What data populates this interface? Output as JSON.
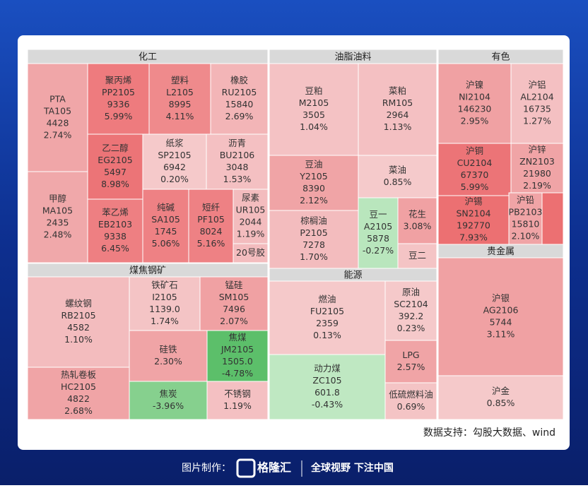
{
  "groups": [
    {
      "title": "化工",
      "tiles": [
        {
          "lines": [
            "PTA",
            "TA105",
            "4428",
            "2.74%"
          ],
          "color": "#f0a6a8"
        },
        {
          "lines": [
            "甲醇",
            "MA105",
            "2435",
            "2.48%"
          ],
          "color": "#f0a8aa"
        },
        {
          "lines": [
            "聚丙烯",
            "PP2105",
            "9336",
            "5.99%"
          ],
          "color": "#ee7b7e"
        },
        {
          "lines": [
            "塑料",
            "L2105",
            "8995",
            "4.11%"
          ],
          "color": "#ef8a8c"
        },
        {
          "lines": [
            "橡胶",
            "RU2105",
            "15840",
            "2.69%"
          ],
          "color": "#f3b5b7"
        },
        {
          "lines": [
            "乙二醇",
            "EG2105",
            "5497",
            "8.98%"
          ],
          "color": "#ec7477"
        },
        {
          "lines": [
            "苯乙烯",
            "EB2103",
            "9338",
            "6.45%"
          ],
          "color": "#ee7f82"
        },
        {
          "lines": [
            "纸浆",
            "SP2105",
            "6942",
            "0.20%"
          ],
          "color": "#f5c9ca"
        },
        {
          "lines": [
            "沥青",
            "BU2106",
            "3048",
            "1.53%"
          ],
          "color": "#f4c0c2"
        },
        {
          "lines": [
            "纯碱",
            "SA105",
            "1745",
            "5.06%"
          ],
          "color": "#ee8184"
        },
        {
          "lines": [
            "短纤",
            "PF105",
            "8024",
            "5.16%"
          ],
          "color": "#ee8184"
        },
        {
          "lines": [
            "尿素",
            "UR105",
            "2044",
            "1.19%"
          ],
          "color": "#f3bcbe"
        },
        {
          "lines": [
            "20号胶"
          ],
          "color": "#f3bcbe"
        }
      ]
    },
    {
      "title": "油脂油料",
      "tiles": [
        {
          "lines": [
            "豆粕",
            "M2105",
            "3505",
            "1.04%"
          ],
          "color": "#f4c2c4"
        },
        {
          "lines": [
            "菜粕",
            "RM105",
            "2964",
            "1.13%"
          ],
          "color": "#f4c0c2"
        },
        {
          "lines": [
            "豆油",
            "Y2105",
            "8390",
            "2.12%"
          ],
          "color": "#f0a4a6"
        },
        {
          "lines": [
            "菜油",
            "0.85%"
          ],
          "color": "#f5cacb"
        },
        {
          "lines": [
            "棕榈油",
            "P2105",
            "7278",
            "1.70%"
          ],
          "color": "#f3bcbe"
        },
        {
          "lines": [
            "豆一",
            "A2105",
            "5878",
            "-0.27%"
          ],
          "color": "#b9e6bd"
        },
        {
          "lines": [
            "花生",
            "3.08%"
          ],
          "color": "#f0a1a3"
        },
        {
          "lines": [
            "豆二"
          ],
          "color": "#f4c4c5"
        }
      ]
    },
    {
      "title": "有色",
      "tiles": [
        {
          "lines": [
            "沪镍",
            "NI2104",
            "146230",
            "2.95%"
          ],
          "color": "#f0a1a3"
        },
        {
          "lines": [
            "沪铝",
            "AL2104",
            "16735",
            "1.27%"
          ],
          "color": "#f4c0c2"
        },
        {
          "lines": [
            "沪铜",
            "CU2104",
            "67370",
            "5.99%"
          ],
          "color": "#ec7477"
        },
        {
          "lines": [
            "沪锌",
            "ZN2103",
            "21980",
            "2.19%"
          ],
          "color": "#f0a4a6"
        },
        {
          "lines": [
            "沪锡",
            "SN2104",
            "192770",
            "7.93%"
          ],
          "color": "#ec7072"
        },
        {
          "lines": [
            "沪铅",
            "PB2103",
            "15810",
            "2.10%"
          ],
          "color": "#f0a4a6"
        }
      ]
    },
    {
      "title": "煤焦钢矿",
      "tiles": [
        {
          "lines": [
            "螺纹钢",
            "RB2105",
            "4582",
            "1.10%"
          ],
          "color": "#f3bcbe"
        },
        {
          "lines": [
            "热轧卷板",
            "HC2105",
            "4822",
            "2.68%"
          ],
          "color": "#f0a4a6"
        },
        {
          "lines": [
            "铁矿石",
            "I2105",
            "1139.0",
            "1.74%"
          ],
          "color": "#f4c4c5"
        },
        {
          "lines": [
            "锰硅",
            "SM105",
            "7496",
            "2.07%"
          ],
          "color": "#f0a1a3"
        },
        {
          "lines": [
            "硅铁",
            "2.30%"
          ],
          "color": "#f0a4a6"
        },
        {
          "lines": [
            "焦煤",
            "JM2105",
            "1505.0",
            "-4.78%"
          ],
          "color": "#5cbf6a"
        },
        {
          "lines": [
            "焦炭",
            "-3.96%"
          ],
          "color": "#86d08e"
        },
        {
          "lines": [
            "不锈钢",
            "1.19%"
          ],
          "color": "#f4c0c2"
        }
      ]
    },
    {
      "title": "能源",
      "tiles": [
        {
          "lines": [
            "燃油",
            "FU2105",
            "2359",
            "0.13%"
          ],
          "color": "#f5c9ca"
        },
        {
          "lines": [
            "原油",
            "SC2104",
            "392.2",
            "0.23%"
          ],
          "color": "#f5c9ca"
        },
        {
          "lines": [
            "动力煤",
            "ZC105",
            "601.8",
            "-0.43%"
          ],
          "color": "#bfe8c2"
        },
        {
          "lines": [
            "LPG",
            "2.57%"
          ],
          "color": "#f0a4a6"
        },
        {
          "lines": [
            "低硫燃料油",
            "0.69%"
          ],
          "color": "#f4c4c5"
        }
      ]
    },
    {
      "title": "贵金属",
      "tiles": [
        {
          "lines": [
            "沪银",
            "AG2106",
            "5744",
            "3.11%"
          ],
          "color": "#f0a1a3"
        },
        {
          "lines": [
            "沪金",
            "0.85%"
          ],
          "color": "#f5c9ca"
        }
      ]
    }
  ],
  "footer": {
    "source": "数据支持：勾股大数据、wind"
  },
  "bottom": {
    "made_by": "图片制作：",
    "logo": "格隆汇",
    "slogan": "全球视野 下注中国"
  }
}
